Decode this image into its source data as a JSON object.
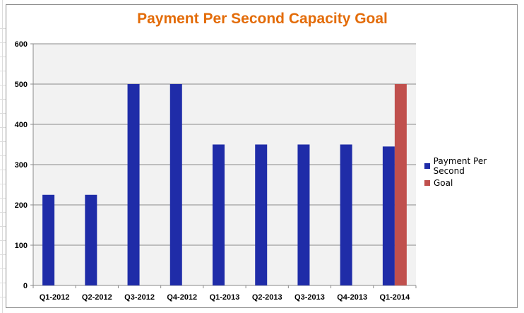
{
  "chart_data": {
    "type": "bar",
    "title": "Payment Per Second Capacity Goal",
    "categories": [
      "Q1-2012",
      "Q2-2012",
      "Q3-2012",
      "Q4-2012",
      "Q1-2013",
      "Q2-2013",
      "Q3-2013",
      "Q4-2013",
      "Q1-2014"
    ],
    "series": [
      {
        "name": "Payment Per Second",
        "color": "#1f2ca8",
        "values": [
          225,
          225,
          500,
          500,
          350,
          350,
          350,
          350,
          345
        ]
      },
      {
        "name": "Goal",
        "color": "#c0504d",
        "values": [
          null,
          null,
          null,
          null,
          null,
          null,
          null,
          null,
          500
        ]
      }
    ],
    "ylim": [
      0,
      600
    ],
    "yticks": [
      0,
      100,
      200,
      300,
      400,
      500,
      600
    ],
    "xlabel": "",
    "ylabel": "",
    "grid": true,
    "legend_position": "right",
    "plot_background": "#f2f2f2"
  }
}
